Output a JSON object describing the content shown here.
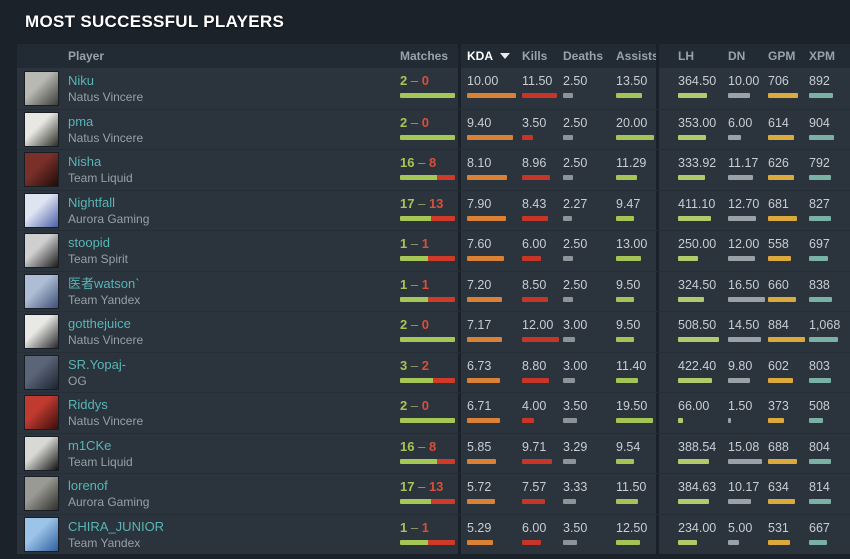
{
  "title": "MOST SUCCESSFUL PLAYERS",
  "colors": {
    "page_bg": "#1b222a",
    "row_bg": "#2b333d",
    "header_bg": "#222a33",
    "player_link": "#58b6b6",
    "win": "#a9c455",
    "loss": "#d7503b",
    "bar_win": "#a5c755",
    "bar_loss": "#d03a28",
    "bar_kda": "#db8135",
    "bar_kills": "#c53628",
    "bar_deaths": "#8d9499",
    "bar_assists": "#a3c556",
    "bar_lh": "#b0ca6c",
    "bar_dn": "#9aa1a7",
    "bar_gpm": "#dba93c",
    "bar_xpm": "#79b1a4"
  },
  "table": {
    "matches_separator": "–",
    "sorted_column": "KDA",
    "sort_direction": "desc",
    "columns": [
      {
        "key": "player",
        "label": "Player"
      },
      {
        "key": "matches",
        "label": "Matches"
      },
      {
        "key": "kda",
        "label": "KDA"
      },
      {
        "key": "kills",
        "label": "Kills"
      },
      {
        "key": "deaths",
        "label": "Deaths"
      },
      {
        "key": "assists",
        "label": "Assists"
      },
      {
        "key": "lh",
        "label": "LH"
      },
      {
        "key": "dn",
        "label": "DN"
      },
      {
        "key": "gpm",
        "label": "GPM"
      },
      {
        "key": "xpm",
        "label": "XPM"
      }
    ]
  },
  "players": [
    {
      "name": "Niku",
      "team": "Natus Vincere",
      "wins": 2,
      "losses": 0,
      "kda": "10.00",
      "kills": "11.50",
      "deaths": "2.50",
      "assists": "13.50",
      "lh": "364.50",
      "dn": "10.00",
      "gpm": "706",
      "xpm": "892",
      "avatar_colors": [
        "#b9b9b4",
        "#3c3c38"
      ]
    },
    {
      "name": "pma",
      "team": "Natus Vincere",
      "wins": 2,
      "losses": 0,
      "kda": "9.40",
      "kills": "3.50",
      "deaths": "2.50",
      "assists": "20.00",
      "lh": "353.00",
      "dn": "6.00",
      "gpm": "614",
      "xpm": "904",
      "avatar_colors": [
        "#e8e8e2",
        "#2a2a26"
      ]
    },
    {
      "name": "Nisha",
      "team": "Team Liquid",
      "wins": 16,
      "losses": 8,
      "kda": "8.10",
      "kills": "8.96",
      "deaths": "2.50",
      "assists": "11.29",
      "lh": "333.92",
      "dn": "11.17",
      "gpm": "626",
      "xpm": "792",
      "avatar_colors": [
        "#7a3028",
        "#200c0a"
      ]
    },
    {
      "name": "Nightfall",
      "team": "Aurora Gaming",
      "wins": 17,
      "losses": 13,
      "kda": "7.90",
      "kills": "8.43",
      "deaths": "2.27",
      "assists": "9.47",
      "lh": "411.10",
      "dn": "12.70",
      "gpm": "681",
      "xpm": "827",
      "avatar_colors": [
        "#dfe4f2",
        "#4a5fa8"
      ]
    },
    {
      "name": "stoopid",
      "team": "Team Spirit",
      "wins": 1,
      "losses": 1,
      "kda": "7.60",
      "kills": "6.00",
      "deaths": "2.50",
      "assists": "13.00",
      "lh": "250.00",
      "dn": "12.00",
      "gpm": "558",
      "xpm": "697",
      "avatar_colors": [
        "#cfcfcf",
        "#1a1a1a"
      ]
    },
    {
      "name": "医者watson`",
      "team": "Team Yandex",
      "wins": 1,
      "losses": 1,
      "kda": "7.20",
      "kills": "8.50",
      "deaths": "2.50",
      "assists": "9.50",
      "lh": "324.50",
      "dn": "16.50",
      "gpm": "660",
      "xpm": "838",
      "avatar_colors": [
        "#aebdd4",
        "#3d4f77"
      ]
    },
    {
      "name": "gotthejuice",
      "team": "Natus Vincere",
      "wins": 2,
      "losses": 0,
      "kda": "7.17",
      "kills": "12.00",
      "deaths": "3.00",
      "assists": "9.50",
      "lh": "508.50",
      "dn": "14.50",
      "gpm": "884",
      "xpm": "1,068",
      "avatar_colors": [
        "#e8e8e4",
        "#26262a"
      ]
    },
    {
      "name": "SR.Yopaj-",
      "team": "OG",
      "wins": 3,
      "losses": 2,
      "kda": "6.73",
      "kills": "8.80",
      "deaths": "3.00",
      "assists": "11.40",
      "lh": "422.40",
      "dn": "9.80",
      "gpm": "602",
      "xpm": "803",
      "avatar_colors": [
        "#5a6578",
        "#1d2330"
      ]
    },
    {
      "name": "Riddys",
      "team": "Natus Vincere",
      "wins": 2,
      "losses": 0,
      "kda": "6.71",
      "kills": "4.00",
      "deaths": "3.50",
      "assists": "19.50",
      "lh": "66.00",
      "dn": "1.50",
      "gpm": "373",
      "xpm": "508",
      "avatar_colors": [
        "#c03a30",
        "#3a0e0a"
      ]
    },
    {
      "name": "m1CKe",
      "team": "Team Liquid",
      "wins": 16,
      "losses": 8,
      "kda": "5.85",
      "kills": "9.71",
      "deaths": "3.29",
      "assists": "9.54",
      "lh": "388.54",
      "dn": "15.08",
      "gpm": "688",
      "xpm": "804",
      "avatar_colors": [
        "#d8d8d4",
        "#111111"
      ]
    },
    {
      "name": "lorenof",
      "team": "Aurora Gaming",
      "wins": 17,
      "losses": 13,
      "kda": "5.72",
      "kills": "7.57",
      "deaths": "3.33",
      "assists": "11.50",
      "lh": "384.63",
      "dn": "10.17",
      "gpm": "634",
      "xpm": "814",
      "avatar_colors": [
        "#9a9a94",
        "#2e2e2a"
      ]
    },
    {
      "name": "CHIRA_JUNIOR",
      "team": "Team Yandex",
      "wins": 1,
      "losses": 1,
      "kda": "5.29",
      "kills": "6.00",
      "deaths": "3.50",
      "assists": "12.50",
      "lh": "234.00",
      "dn": "5.00",
      "gpm": "531",
      "xpm": "667",
      "avatar_colors": [
        "#9cc4e8",
        "#2e5f9e"
      ]
    }
  ]
}
